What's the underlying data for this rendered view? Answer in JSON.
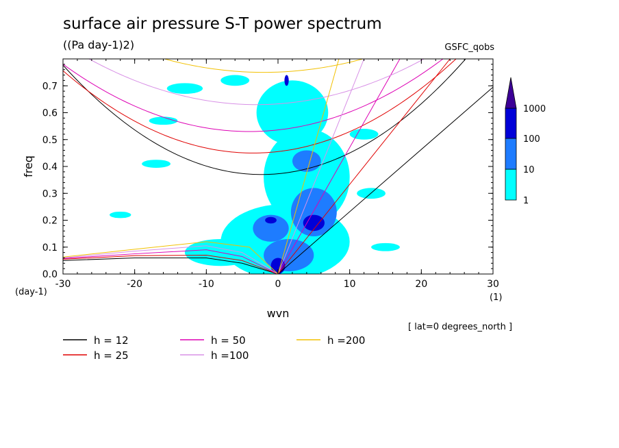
{
  "title": "surface air pressure S-T power spectrum",
  "units": "((Pa day-1)2)",
  "dataset": "GSFC_qobs",
  "lat_note": "[ lat=0 degrees_north ]",
  "colors": {
    "c1": "#00ffff",
    "c2": "#1e7cff",
    "c3": "#0000d8",
    "c4": "#3c0096"
  },
  "chart_data": {
    "type": "heatmap",
    "xlabel": "wvn",
    "ylabel": "freq",
    "xunit": "(1)",
    "yunit": "(day-1)",
    "xlim": [
      -30,
      30
    ],
    "ylim": [
      0,
      0.8
    ],
    "xticks": [
      -30,
      -20,
      -10,
      0,
      10,
      20,
      30
    ],
    "xtick_labels": [
      "-30",
      "-20",
      "-10",
      "0",
      "10",
      "20",
      "30"
    ],
    "yticks": [
      0,
      0.1,
      0.2,
      0.3,
      0.4,
      0.5,
      0.6,
      0.7
    ],
    "ytick_labels": [
      "0.0",
      "0.1",
      "0.2",
      "0.3",
      "0.4",
      "0.5",
      "0.6",
      "0.7"
    ],
    "colorbar": {
      "levels": [
        "1",
        "10",
        "100",
        "1000"
      ],
      "colors": [
        "#00ffff",
        "#1e7cff",
        "#0000d8",
        "#3c0096"
      ]
    },
    "legend": [
      {
        "label": "h = 12",
        "color": "#000000"
      },
      {
        "label": "h = 25",
        "color": "#e00000"
      },
      {
        "label": "h = 50",
        "color": "#dd00b4"
      },
      {
        "label": "h =100",
        "color": "#d890e6"
      },
      {
        "label": "h =200",
        "color": "#f2c000"
      }
    ],
    "dispersion_curves": [
      {
        "h": 12,
        "color": "#000000",
        "kelvin": [
          [
            0,
            0
          ],
          [
            30,
            0.695
          ]
        ],
        "inertia_gravity_min": [
          -2.3,
          0.37
        ],
        "mrg": [
          [
            -30,
            0.05
          ],
          [
            -20,
            0.06
          ],
          [
            -10,
            0.06
          ],
          [
            -5,
            0.04
          ],
          [
            0,
            0
          ]
        ]
      },
      {
        "h": 25,
        "color": "#e00000",
        "kelvin": [
          [
            0,
            0
          ],
          [
            24,
            0.8
          ]
        ],
        "inertia_gravity_min": [
          -3.5,
          0.45
        ],
        "mrg": [
          [
            -30,
            0.055
          ],
          [
            -20,
            0.068
          ],
          [
            -10,
            0.07
          ],
          [
            -5,
            0.05
          ],
          [
            0,
            0
          ]
        ]
      },
      {
        "h": 50,
        "color": "#dd00b4",
        "kelvin": [
          [
            0,
            0
          ],
          [
            17,
            0.8
          ]
        ],
        "inertia_gravity_min": [
          -4,
          0.53
        ],
        "mrg": [
          [
            -30,
            0.058
          ],
          [
            -20,
            0.075
          ],
          [
            -10,
            0.09
          ],
          [
            -5,
            0.065
          ],
          [
            0,
            0
          ]
        ]
      },
      {
        "h": 100,
        "color": "#d890e6",
        "kelvin": [
          [
            0,
            0
          ],
          [
            12,
            0.8
          ]
        ],
        "inertia_gravity_min": [
          -3,
          0.63
        ],
        "mrg": [
          [
            -30,
            0.06
          ],
          [
            -20,
            0.085
          ],
          [
            -10,
            0.105
          ],
          [
            -5,
            0.08
          ],
          [
            0,
            0
          ]
        ]
      },
      {
        "h": 200,
        "color": "#f2c000",
        "kelvin": [
          [
            0,
            0
          ],
          [
            8.5,
            0.8
          ]
        ],
        "inertia_gravity_min": [
          -2,
          0.75
        ],
        "mrg": [
          [
            -30,
            0.063
          ],
          [
            -20,
            0.092
          ],
          [
            -10,
            0.12
          ],
          [
            -4,
            0.1
          ],
          [
            0,
            0
          ]
        ]
      }
    ],
    "contour_blobs": [
      {
        "level": 1,
        "x": 1,
        "y": 0.12,
        "rx": 9,
        "ry": 0.14
      },
      {
        "level": 1,
        "x": 4,
        "y": 0.36,
        "rx": 6,
        "ry": 0.18
      },
      {
        "level": 1,
        "x": 2,
        "y": 0.6,
        "rx": 5,
        "ry": 0.12
      },
      {
        "level": 1,
        "x": -8,
        "y": 0.08,
        "rx": 5,
        "ry": 0.05
      },
      {
        "level": 1,
        "x": -13,
        "y": 0.69,
        "rx": 2.5,
        "ry": 0.02
      },
      {
        "level": 1,
        "x": -16,
        "y": 0.57,
        "rx": 2,
        "ry": 0.015
      },
      {
        "level": 1,
        "x": -17,
        "y": 0.41,
        "rx": 2,
        "ry": 0.015
      },
      {
        "level": 1,
        "x": 13,
        "y": 0.3,
        "rx": 2,
        "ry": 0.02
      },
      {
        "level": 1,
        "x": -22,
        "y": 0.22,
        "rx": 1.5,
        "ry": 0.012
      },
      {
        "level": 1,
        "x": 15,
        "y": 0.1,
        "rx": 2,
        "ry": 0.015
      },
      {
        "level": 1,
        "x": -6,
        "y": 0.72,
        "rx": 2,
        "ry": 0.02
      },
      {
        "level": 1,
        "x": 12,
        "y": 0.52,
        "rx": 2,
        "ry": 0.02
      },
      {
        "level": 10,
        "x": 5,
        "y": 0.23,
        "rx": 3.2,
        "ry": 0.09
      },
      {
        "level": 10,
        "x": 1.5,
        "y": 0.07,
        "rx": 3.5,
        "ry": 0.06
      },
      {
        "level": 10,
        "x": -1,
        "y": 0.17,
        "rx": 2.5,
        "ry": 0.05
      },
      {
        "level": 10,
        "x": 4,
        "y": 0.42,
        "rx": 2,
        "ry": 0.04
      },
      {
        "level": 100,
        "x": -1,
        "y": 0.2,
        "rx": 0.8,
        "ry": 0.012
      },
      {
        "level": 100,
        "x": 0,
        "y": 0.03,
        "rx": 1,
        "ry": 0.03
      },
      {
        "level": 100,
        "x": 5,
        "y": 0.19,
        "rx": 1.5,
        "ry": 0.03
      },
      {
        "level": 100,
        "x": 1.2,
        "y": 0.72,
        "rx": 0.3,
        "ry": 0.02
      }
    ]
  }
}
